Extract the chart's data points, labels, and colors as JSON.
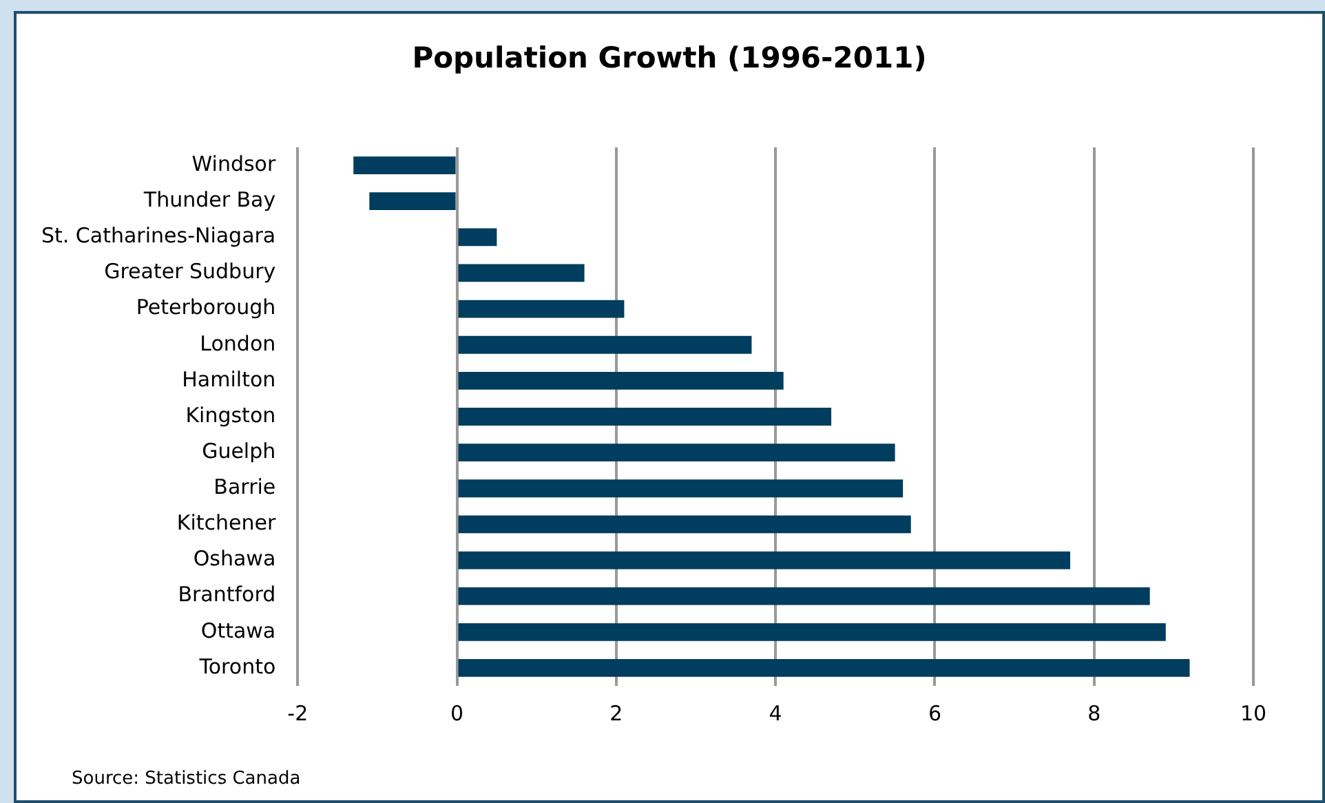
{
  "chart_data": {
    "type": "bar",
    "orientation": "horizontal",
    "title": "Population Growth (1996-2011)",
    "categories": [
      "Windsor",
      "Thunder Bay",
      "St. Catharines-Niagara",
      "Greater Sudbury",
      "Peterborough",
      "London",
      "Hamilton",
      "Kingston",
      "Guelph",
      "Barrie",
      "Kitchener",
      "Oshawa",
      "Brantford",
      "Ottawa",
      "Toronto"
    ],
    "values": [
      -1.3,
      -1.1,
      0.5,
      1.6,
      2.1,
      3.7,
      4.1,
      4.7,
      5.5,
      5.6,
      5.7,
      7.7,
      8.7,
      8.9,
      9.2
    ],
    "color": "#003d5e",
    "xlim": [
      -2,
      10
    ],
    "xticks": [
      -2,
      0,
      2,
      4,
      6,
      8,
      10
    ],
    "grid": "x",
    "annotations": [
      "Source: Statistics Canada"
    ]
  }
}
